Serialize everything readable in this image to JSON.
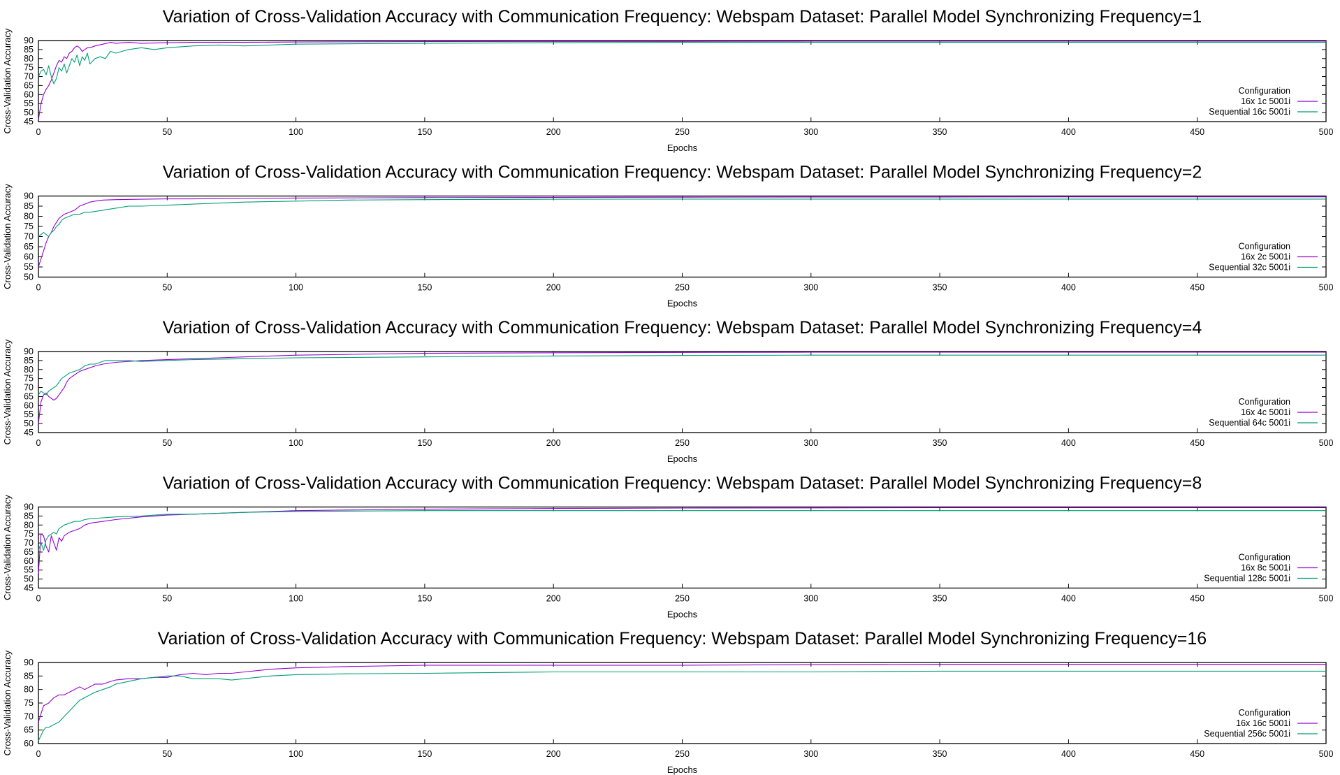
{
  "chart_data": [
    {
      "type": "line",
      "title": "Variation of Cross-Validation Accuracy with Communication Frequency: Webspam Dataset: Parallel Model Synchronizing Frequency=1",
      "xlabel": "Epochs",
      "ylabel": "Cross-Validation Accuracy",
      "xlim": [
        0,
        500
      ],
      "ylim": [
        45,
        90
      ],
      "xticks": [
        0,
        50,
        100,
        150,
        200,
        250,
        300,
        350,
        400,
        450,
        500
      ],
      "yticks": [
        45,
        50,
        55,
        60,
        65,
        70,
        75,
        80,
        85,
        90
      ],
      "legend_title": "Configuration",
      "legend_position": "bottom-right",
      "series": [
        {
          "name": "16x 1c 5001i",
          "color": "#9400d3",
          "x": [
            0,
            1,
            2,
            3,
            4,
            5,
            6,
            7,
            8,
            9,
            10,
            11,
            12,
            13,
            14,
            15,
            16,
            17,
            18,
            19,
            20,
            22,
            25,
            28,
            30,
            35,
            40,
            50,
            60,
            80,
            100,
            150,
            200,
            250,
            300,
            350,
            400,
            450,
            500
          ],
          "y": [
            46,
            55,
            60,
            63,
            65,
            68,
            72,
            76,
            79,
            78,
            81,
            80,
            83,
            84,
            86,
            87,
            86,
            84,
            85,
            86,
            86,
            87,
            88,
            89,
            88.5,
            89,
            88.5,
            88.8,
            89,
            89,
            89.2,
            89.4,
            89.5,
            89.5,
            89.6,
            89.6,
            89.6,
            89.6,
            89.6
          ]
        },
        {
          "name": "Sequential 16c 5001i",
          "color": "#009e73",
          "x": [
            0,
            1,
            2,
            3,
            4,
            5,
            6,
            7,
            8,
            9,
            10,
            11,
            12,
            13,
            14,
            15,
            16,
            17,
            18,
            19,
            20,
            22,
            24,
            26,
            28,
            30,
            35,
            40,
            45,
            50,
            60,
            70,
            80,
            100,
            150,
            200,
            250,
            300,
            350,
            400,
            450,
            500
          ],
          "y": [
            70,
            73,
            74,
            71,
            76,
            70,
            66,
            69,
            75,
            73,
            77,
            72,
            76,
            80,
            78,
            82,
            76,
            81,
            79,
            83,
            77,
            80,
            81,
            80,
            84,
            83,
            85,
            86,
            85,
            86,
            87,
            87.5,
            87,
            88,
            88.5,
            88.8,
            89,
            89,
            89,
            89,
            89,
            89
          ]
        }
      ]
    },
    {
      "type": "line",
      "title": "Variation of Cross-Validation Accuracy with Communication Frequency: Webspam Dataset: Parallel Model Synchronizing Frequency=2",
      "xlabel": "Epochs",
      "ylabel": "Cross-Validation Accuracy",
      "xlim": [
        0,
        500
      ],
      "ylim": [
        50,
        90
      ],
      "xticks": [
        0,
        50,
        100,
        150,
        200,
        250,
        300,
        350,
        400,
        450,
        500
      ],
      "yticks": [
        50,
        55,
        60,
        65,
        70,
        75,
        80,
        85,
        90
      ],
      "legend_title": "Configuration",
      "legend_position": "bottom-right",
      "series": [
        {
          "name": "16x 2c 5001i",
          "color": "#9400d3",
          "x": [
            0,
            1,
            2,
            3,
            4,
            5,
            6,
            7,
            8,
            9,
            10,
            12,
            14,
            16,
            18,
            20,
            22,
            25,
            30,
            40,
            50,
            60,
            80,
            100,
            150,
            200,
            250,
            300,
            350,
            400,
            450,
            500
          ],
          "y": [
            55,
            59,
            63,
            67,
            70,
            72,
            75,
            77,
            79,
            80,
            81,
            82,
            83,
            85,
            86,
            87,
            87.5,
            88,
            88.2,
            88.4,
            88.6,
            88.6,
            88.8,
            89,
            89.2,
            89.3,
            89.4,
            89.5,
            89.5,
            89.6,
            89.6,
            89.6
          ]
        },
        {
          "name": "Sequential 32c 5001i",
          "color": "#009e73",
          "x": [
            0,
            1,
            2,
            3,
            4,
            5,
            6,
            7,
            8,
            9,
            10,
            12,
            14,
            16,
            18,
            20,
            25,
            30,
            35,
            40,
            50,
            60,
            70,
            80,
            100,
            120,
            150,
            200,
            250,
            300,
            350,
            400,
            450,
            500
          ],
          "y": [
            70,
            71,
            72,
            71,
            70,
            72,
            73,
            75,
            76,
            78,
            79,
            80,
            81,
            81,
            82,
            82,
            83,
            84,
            85,
            85,
            85.5,
            86,
            86.5,
            87,
            87.5,
            88,
            88.2,
            88.4,
            88.5,
            88.5,
            88.5,
            88.5,
            88.5,
            88.5
          ]
        }
      ]
    },
    {
      "type": "line",
      "title": "Variation of Cross-Validation Accuracy with Communication Frequency: Webspam Dataset: Parallel Model Synchronizing Frequency=4",
      "xlabel": "Epochs",
      "ylabel": "Cross-Validation Accuracy",
      "xlim": [
        0,
        500
      ],
      "ylim": [
        45,
        90
      ],
      "xticks": [
        0,
        50,
        100,
        150,
        200,
        250,
        300,
        350,
        400,
        450,
        500
      ],
      "yticks": [
        45,
        50,
        55,
        60,
        65,
        70,
        75,
        80,
        85,
        90
      ],
      "legend_title": "Configuration",
      "legend_position": "bottom-right",
      "series": [
        {
          "name": "16x 4c 5001i",
          "color": "#9400d3",
          "x": [
            0,
            1,
            2,
            3,
            4,
            5,
            6,
            7,
            8,
            9,
            10,
            11,
            12,
            13,
            14,
            15,
            16,
            18,
            20,
            22,
            25,
            30,
            40,
            50,
            60,
            70,
            80,
            100,
            150,
            200,
            250,
            300,
            350,
            400,
            450,
            500
          ],
          "y": [
            50,
            62,
            66,
            67,
            65,
            64,
            63,
            64,
            66,
            68,
            70,
            73,
            75,
            76,
            77,
            78,
            79,
            80,
            81,
            82,
            83,
            84,
            85,
            85.5,
            86,
            86.5,
            87,
            88,
            89,
            89.3,
            89.5,
            89.6,
            89.6,
            89.6,
            89.6,
            89.6
          ]
        },
        {
          "name": "Sequential 64c 5001i",
          "color": "#009e73",
          "x": [
            0,
            1,
            2,
            3,
            4,
            5,
            6,
            7,
            8,
            9,
            10,
            12,
            14,
            16,
            18,
            20,
            22,
            24,
            26,
            30,
            35,
            40,
            50,
            60,
            80,
            100,
            150,
            200,
            250,
            300,
            350,
            400,
            450,
            500
          ],
          "y": [
            66,
            68,
            67,
            66,
            68,
            69,
            70,
            71,
            73,
            75,
            76,
            78,
            79,
            80,
            82,
            83,
            83,
            84,
            85,
            85,
            85,
            84.5,
            85,
            85.5,
            86,
            86.5,
            87,
            87.5,
            87.8,
            88,
            88,
            88,
            88,
            88
          ]
        }
      ]
    },
    {
      "type": "line",
      "title": "Variation of Cross-Validation Accuracy with Communication Frequency: Webspam Dataset: Parallel Model Synchronizing Frequency=8",
      "xlabel": "Epochs",
      "ylabel": "Cross-Validation Accuracy",
      "xlim": [
        0,
        500
      ],
      "ylim": [
        45,
        90
      ],
      "xticks": [
        0,
        50,
        100,
        150,
        200,
        250,
        300,
        350,
        400,
        450,
        500
      ],
      "yticks": [
        45,
        50,
        55,
        60,
        65,
        70,
        75,
        80,
        85,
        90
      ],
      "legend_title": "Configuration",
      "legend_position": "bottom-right",
      "series": [
        {
          "name": "16x 8c 5001i",
          "color": "#9400d3",
          "x": [
            0,
            1,
            2,
            3,
            4,
            5,
            6,
            7,
            8,
            9,
            10,
            12,
            14,
            16,
            18,
            20,
            25,
            30,
            40,
            50,
            60,
            80,
            100,
            150,
            200,
            250,
            300,
            350,
            400,
            450,
            500
          ],
          "y": [
            53,
            75,
            74,
            68,
            65,
            74,
            70,
            66,
            73,
            71,
            74,
            76,
            77,
            78,
            80,
            81,
            82,
            83,
            84.5,
            85.5,
            86,
            87,
            88,
            88.8,
            89.2,
            89.4,
            89.5,
            89.6,
            89.6,
            89.6,
            89.6
          ]
        },
        {
          "name": "Sequential 128c 5001i",
          "color": "#009e73",
          "x": [
            0,
            1,
            2,
            3,
            4,
            5,
            6,
            7,
            8,
            9,
            10,
            12,
            14,
            16,
            18,
            20,
            25,
            30,
            40,
            50,
            60,
            80,
            100,
            150,
            200,
            250,
            300,
            350,
            400,
            450,
            500
          ],
          "y": [
            66,
            70,
            66,
            72,
            74,
            75,
            76,
            75,
            78,
            79,
            80,
            81,
            82,
            82,
            83,
            83.5,
            84,
            84.5,
            85,
            86,
            86,
            87,
            87.5,
            88,
            88,
            88,
            88,
            88,
            88,
            88,
            88
          ]
        }
      ]
    },
    {
      "type": "line",
      "title": "Variation of Cross-Validation Accuracy with Communication Frequency: Webspam Dataset: Parallel Model Synchronizing Frequency=16",
      "xlabel": "Epochs",
      "ylabel": "Cross-Validation Accuracy",
      "xlim": [
        0,
        500
      ],
      "ylim": [
        60,
        90
      ],
      "xticks": [
        0,
        50,
        100,
        150,
        200,
        250,
        300,
        350,
        400,
        450,
        500
      ],
      "yticks": [
        60,
        65,
        70,
        75,
        80,
        85,
        90
      ],
      "legend_title": "Configuration",
      "legend_position": "bottom-right",
      "series": [
        {
          "name": "16x 16c 5001i",
          "color": "#9400d3",
          "x": [
            0,
            2,
            4,
            6,
            8,
            10,
            12,
            14,
            16,
            18,
            20,
            22,
            25,
            28,
            30,
            35,
            40,
            45,
            50,
            55,
            60,
            65,
            70,
            75,
            80,
            90,
            100,
            120,
            150,
            200,
            250,
            300,
            350,
            400,
            450,
            500
          ],
          "y": [
            68,
            74,
            75,
            77,
            78,
            78,
            79,
            80,
            81,
            80,
            81,
            82,
            82,
            83,
            83.5,
            84,
            84,
            84.5,
            84.5,
            85.5,
            86,
            85.5,
            86,
            86,
            86.5,
            87.5,
            88,
            88.5,
            89,
            89,
            89,
            89.2,
            89.3,
            89.3,
            89.3,
            89.3
          ]
        },
        {
          "name": "Sequential 256c 5001i",
          "color": "#009e73",
          "x": [
            0,
            1,
            2,
            3,
            4,
            6,
            8,
            10,
            12,
            14,
            16,
            18,
            20,
            22,
            25,
            28,
            30,
            35,
            40,
            45,
            50,
            55,
            60,
            65,
            70,
            75,
            80,
            90,
            100,
            120,
            150,
            200,
            250,
            300,
            350,
            400,
            450,
            500
          ],
          "y": [
            61,
            63,
            65,
            66,
            66,
            67,
            68,
            70,
            72,
            74,
            76,
            77,
            78,
            79,
            80,
            81,
            82,
            83,
            84,
            84.5,
            85,
            85,
            84,
            84,
            84,
            83.5,
            84,
            85,
            85.5,
            85.8,
            86,
            86.5,
            86.5,
            86.5,
            86.8,
            86.8,
            86.8,
            86.8
          ]
        }
      ]
    }
  ]
}
